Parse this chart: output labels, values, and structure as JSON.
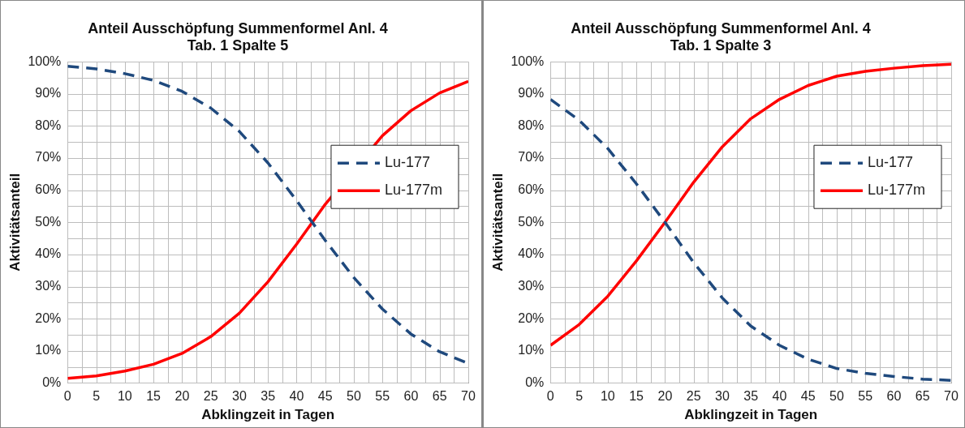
{
  "chart_data": [
    {
      "type": "line",
      "title": "Anteil Ausschöpfung Summenformel Anl. 4\nTab. 1 Spalte 5",
      "xlabel": "Abklingzeit in Tagen",
      "ylabel": "Aktivitätsanteil",
      "x": [
        0,
        5,
        10,
        15,
        20,
        25,
        30,
        35,
        40,
        45,
        50,
        55,
        60,
        65,
        70
      ],
      "series": [
        {
          "name": "Lu-177",
          "color": "#1f497d",
          "line_style": "dashed",
          "values": [
            98.6,
            97.8,
            96.3,
            94.2,
            90.8,
            85.6,
            78.3,
            68.5,
            56.8,
            44.4,
            32.8,
            23.0,
            15.2,
            9.7,
            6.1
          ]
        },
        {
          "name": "Lu-177m",
          "color": "#ff0000",
          "line_style": "solid",
          "values": [
            1.4,
            2.2,
            3.7,
            5.8,
            9.2,
            14.4,
            21.7,
            31.5,
            43.2,
            55.6,
            null,
            77.0,
            84.8,
            90.3,
            93.9
          ]
        }
      ],
      "xlim": [
        0,
        70
      ],
      "ylim": [
        0,
        100
      ],
      "xticks": [
        0,
        {
          "value": 2.5,
          "label": null
        },
        5,
        {
          "value": 7.5,
          "label": null
        },
        10,
        {
          "value": 12.5,
          "label": null
        },
        15,
        {
          "value": 17.5,
          "label": null
        },
        20,
        {
          "value": 22.5,
          "label": null
        },
        25,
        {
          "value": 27.5,
          "label": null
        },
        30,
        {
          "value": 32.5,
          "label": null
        },
        35,
        {
          "value": 37.5,
          "label": null
        },
        40,
        {
          "value": 42.5,
          "label": null
        },
        45,
        {
          "value": 47.5,
          "label": null
        },
        50,
        {
          "value": 52.5,
          "label": null
        },
        55,
        {
          "value": 57.5,
          "label": null
        },
        60,
        {
          "value": 62.5,
          "label": null
        },
        65,
        {
          "value": 67.5,
          "label": null
        },
        70
      ],
      "yticks": [
        {
          "value": 0,
          "label": "0%"
        },
        {
          "value": 5,
          "label": null
        },
        {
          "value": 10,
          "label": "10%"
        },
        {
          "value": 15,
          "label": null
        },
        {
          "value": 20,
          "label": "20%"
        },
        {
          "value": 25,
          "label": null
        },
        {
          "value": 30,
          "label": "30%"
        },
        {
          "value": 35,
          "label": null
        },
        {
          "value": 40,
          "label": "40%"
        },
        {
          "value": 45,
          "label": null
        },
        {
          "value": 50,
          "label": "50%"
        },
        {
          "value": 55,
          "label": null
        },
        {
          "value": 60,
          "label": "60%"
        },
        {
          "value": 65,
          "label": null
        },
        {
          "value": 70,
          "label": "70%"
        },
        {
          "value": 75,
          "label": null
        },
        {
          "value": 80,
          "label": "80%"
        },
        {
          "value": 85,
          "label": null
        },
        {
          "value": 90,
          "label": "90%"
        },
        {
          "value": 95,
          "label": null
        },
        {
          "value": 100,
          "label": "100%"
        }
      ],
      "grid": true,
      "legend": "right",
      "marker": "none"
    },
    {
      "type": "line",
      "title": "Anteil Ausschöpfung Summenformel Anl. 4\nTab. 1 Spalte 3",
      "xlabel": "Abklingzeit in Tagen",
      "ylabel": "Aktivitätsanteil",
      "x": [
        0,
        5,
        10,
        15,
        20,
        25,
        30,
        35,
        40,
        45,
        50,
        55,
        60,
        65,
        70
      ],
      "series": [
        {
          "name": "Lu-177",
          "color": "#1f497d",
          "line_style": "dashed",
          "values": [
            88.3,
            81.8,
            73.0,
            62.0,
            50.0,
            37.5,
            26.5,
            17.7,
            11.7,
            7.4,
            4.5,
            3.0,
            2.0,
            1.2,
            0.8
          ]
        },
        {
          "name": "Lu-177m",
          "color": "#ff0000",
          "line_style": "solid",
          "values": [
            11.7,
            18.2,
            27.0,
            38.0,
            50.0,
            62.5,
            73.5,
            82.3,
            88.3,
            92.6,
            95.5,
            97.0,
            98.0,
            98.8,
            99.2
          ]
        }
      ],
      "xlim": [
        0,
        70
      ],
      "ylim": [
        0,
        100
      ],
      "xticks": [
        0,
        {
          "value": 2.5,
          "label": null
        },
        5,
        {
          "value": 7.5,
          "label": null
        },
        10,
        {
          "value": 12.5,
          "label": null
        },
        15,
        {
          "value": 17.5,
          "label": null
        },
        20,
        {
          "value": 22.5,
          "label": null
        },
        25,
        {
          "value": 27.5,
          "label": null
        },
        30,
        {
          "value": 32.5,
          "label": null
        },
        35,
        {
          "value": 37.5,
          "label": null
        },
        40,
        {
          "value": 42.5,
          "label": null
        },
        45,
        {
          "value": 47.5,
          "label": null
        },
        50,
        {
          "value": 52.5,
          "label": null
        },
        55,
        {
          "value": 57.5,
          "label": null
        },
        60,
        {
          "value": 62.5,
          "label": null
        },
        65,
        {
          "value": 67.5,
          "label": null
        },
        70
      ],
      "yticks": [
        {
          "value": 0,
          "label": "0%"
        },
        {
          "value": 5,
          "label": null
        },
        {
          "value": 10,
          "label": "10%"
        },
        {
          "value": 15,
          "label": null
        },
        {
          "value": 20,
          "label": "20%"
        },
        {
          "value": 25,
          "label": null
        },
        {
          "value": 30,
          "label": "30%"
        },
        {
          "value": 35,
          "label": null
        },
        {
          "value": 40,
          "label": "40%"
        },
        {
          "value": 45,
          "label": null
        },
        {
          "value": 50,
          "label": "50%"
        },
        {
          "value": 55,
          "label": null
        },
        {
          "value": 60,
          "label": "60%"
        },
        {
          "value": 65,
          "label": null
        },
        {
          "value": 70,
          "label": "70%"
        },
        {
          "value": 75,
          "label": null
        },
        {
          "value": 80,
          "label": "80%"
        },
        {
          "value": 85,
          "label": null
        },
        {
          "value": 90,
          "label": "90%"
        },
        {
          "value": 95,
          "label": null
        },
        {
          "value": 100,
          "label": "100%"
        }
      ],
      "grid": true,
      "legend": "right",
      "marker": "none"
    }
  ]
}
